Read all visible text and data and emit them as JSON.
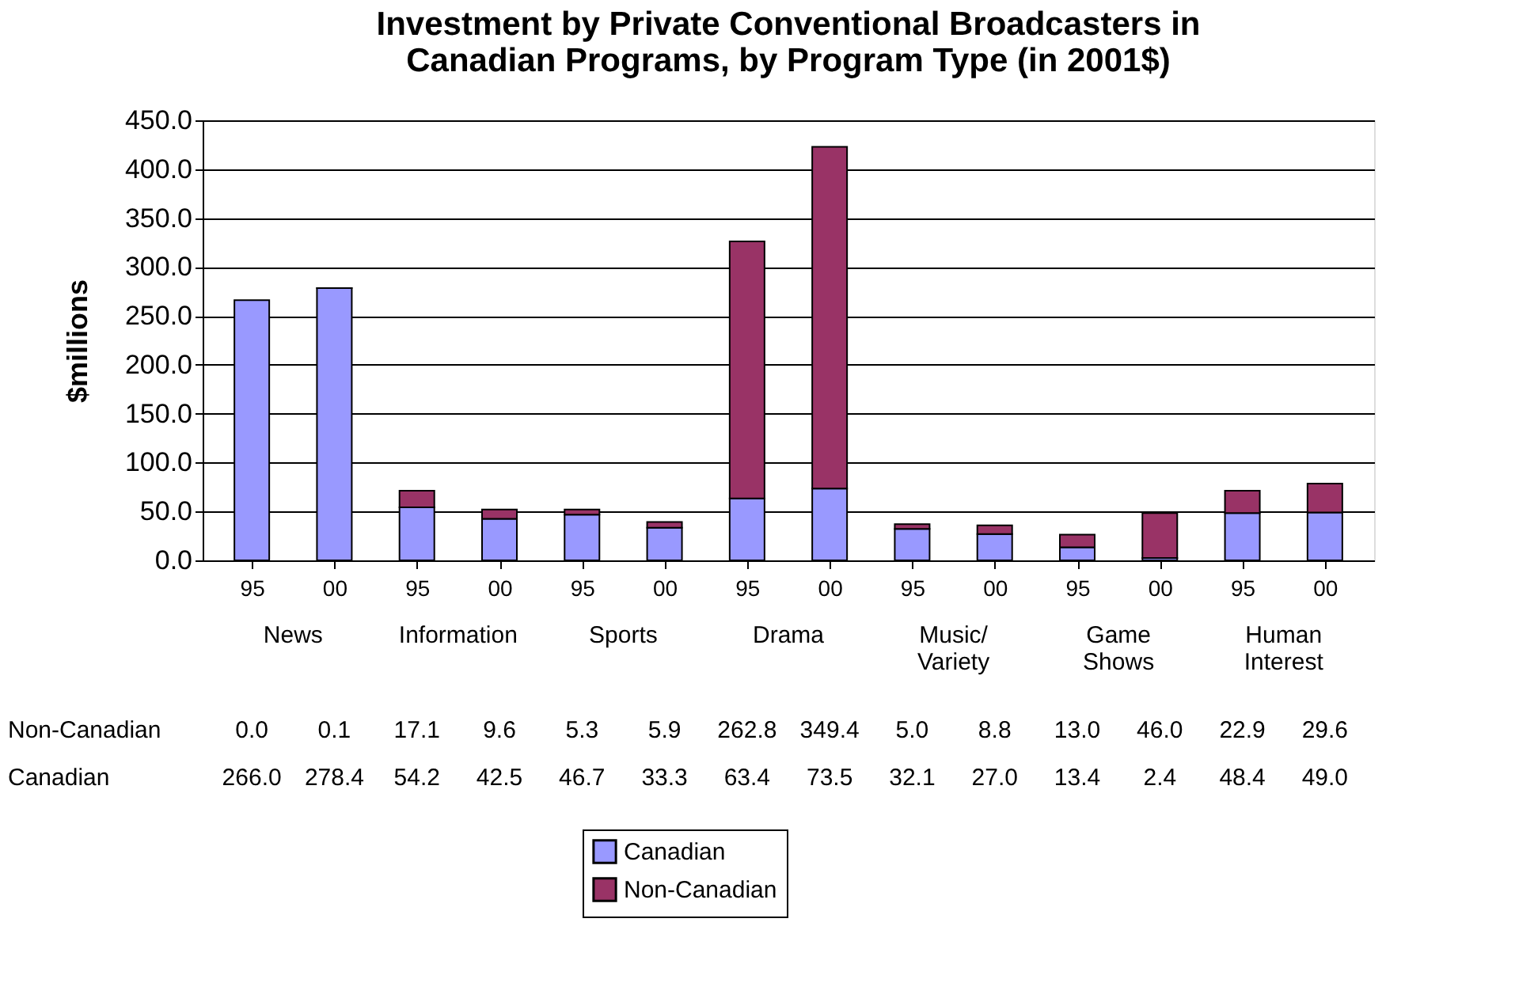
{
  "chart_data": {
    "type": "bar",
    "stacked": true,
    "title": "Investment by Private Conventional Broadcasters in\nCanadian Programs, by Program Type (in 2001$)",
    "ylabel": "$millions",
    "categories": [
      "95",
      "00",
      "95",
      "00",
      "95",
      "00",
      "95",
      "00",
      "95",
      "00",
      "95",
      "00",
      "95",
      "00"
    ],
    "annotations": [
      "News",
      "Information",
      "Sports",
      "Drama",
      "Music/ Variety",
      "Game Shows",
      "Human Interest"
    ],
    "series": [
      {
        "name": "Canadian",
        "color": "#9999ff",
        "values": [
          266.0,
          278.4,
          54.2,
          42.5,
          46.7,
          33.3,
          63.4,
          73.5,
          32.1,
          27.0,
          13.4,
          2.4,
          48.4,
          49.0
        ],
        "value_labels": [
          "266.0",
          "278.4",
          "54.2",
          "42.5",
          "46.7",
          "33.3",
          "63.4",
          "73.5",
          "32.1",
          "27.0",
          "13.4",
          "2.4",
          "48.4",
          "49.0"
        ]
      },
      {
        "name": "Non-Canadian",
        "color": "#993366",
        "values": [
          0.0,
          0.1,
          17.1,
          9.6,
          5.3,
          5.9,
          262.8,
          349.4,
          5.0,
          8.8,
          13.0,
          46.0,
          22.9,
          29.6
        ],
        "value_labels": [
          "0.0",
          "0.1",
          "17.1",
          "9.6",
          "5.3",
          "5.9",
          "262.8",
          "349.4",
          "5.0",
          "8.8",
          "13.0",
          "46.0",
          "22.9",
          "29.6"
        ]
      }
    ],
    "ylim": [
      0,
      450
    ],
    "yticks": [
      {
        "value": 0,
        "label": "0.0"
      },
      {
        "value": 50,
        "label": "50.0"
      },
      {
        "value": 100,
        "label": "100.0"
      },
      {
        "value": 150,
        "label": "150.0"
      },
      {
        "value": 200,
        "label": "200.0"
      },
      {
        "value": 250,
        "label": "250.0"
      },
      {
        "value": 300,
        "label": "300.0"
      },
      {
        "value": 350,
        "label": "350.0"
      },
      {
        "value": 400,
        "label": "400.0"
      },
      {
        "value": 450,
        "label": "450.0"
      }
    ],
    "grid": "y",
    "legend": "bottom"
  }
}
